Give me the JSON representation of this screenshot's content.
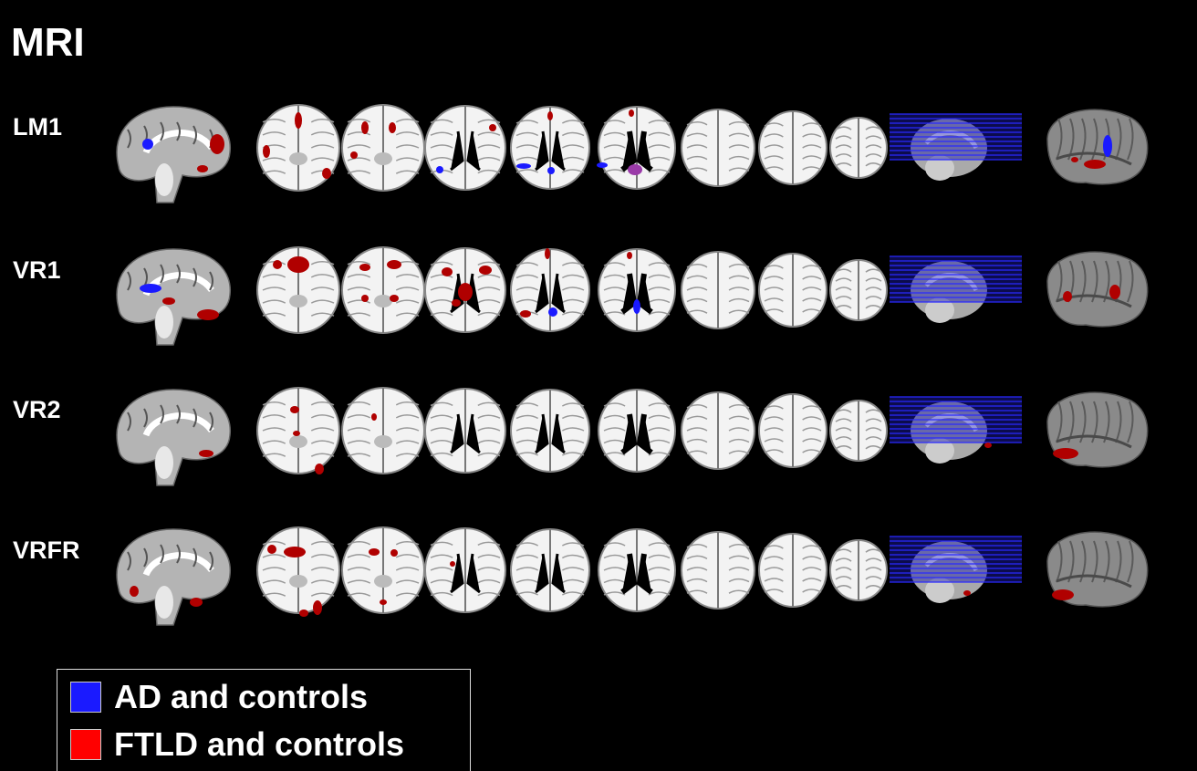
{
  "figure": {
    "title": "MRI",
    "rows": [
      {
        "label": "LM1"
      },
      {
        "label": "VR1"
      },
      {
        "label": "VR2"
      },
      {
        "label": "VRFR"
      }
    ],
    "legend": [
      {
        "label": "AD and controls",
        "color": "#1a1aff"
      },
      {
        "label": "FTLD and controls",
        "color": "#ff0000"
      }
    ]
  }
}
